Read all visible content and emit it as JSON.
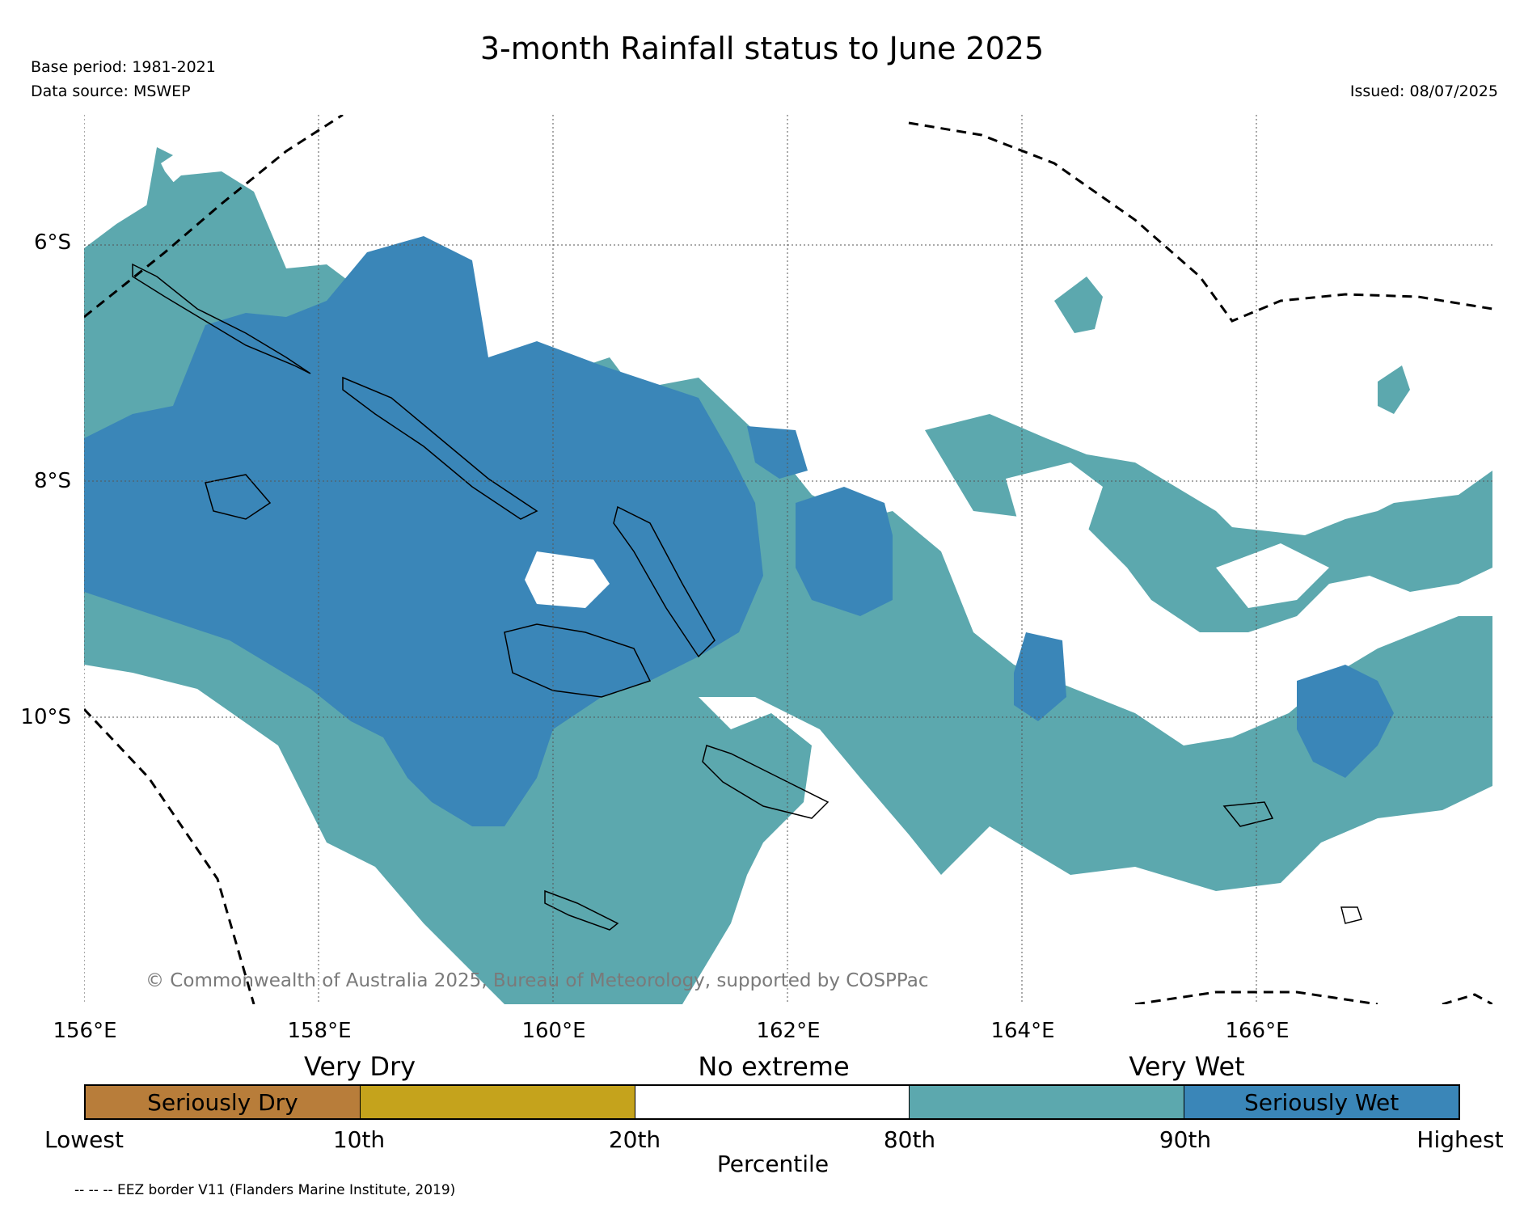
{
  "header": {
    "title": "3-month Rainfall status to June 2025",
    "base_period": "Base period: 1981-2021",
    "data_source": "Data source: MSWEP",
    "issued": "Issued: 08/07/2025"
  },
  "map": {
    "lon_labels": [
      "156°E",
      "158°E",
      "160°E",
      "162°E",
      "164°E",
      "166°E"
    ],
    "lat_labels": [
      "6°S",
      "8°S",
      "10°S"
    ],
    "copyright": "© Commonwealth of Australia 2025, Bureau of Meteorology, supported by COSPPac",
    "colors": {
      "very_wet": "#5ca8ae",
      "seriously_wet": "#3a86b8",
      "no_extreme": "#ffffff",
      "very_dry": "#c5a31c",
      "seriously_dry": "#b87d3a"
    }
  },
  "legend": {
    "category_labels": {
      "very_dry": "Very Dry",
      "no_extreme": "No extreme",
      "very_wet": "Very Wet"
    },
    "segments": [
      {
        "label": "Seriously Dry",
        "color": "#b87d3a"
      },
      {
        "label": "",
        "color": "#c5a31c"
      },
      {
        "label": "",
        "color": "#ffffff"
      },
      {
        "label": "",
        "color": "#5ca8ae"
      },
      {
        "label": "Seriously Wet",
        "color": "#3a86b8"
      }
    ],
    "ticks": [
      "Lowest",
      "10th",
      "20th",
      "80th",
      "90th",
      "Highest"
    ],
    "axis_label": "Percentile"
  },
  "footnote": "-- -- -- EEZ border V11 (Flanders Marine Institute, 2019)"
}
